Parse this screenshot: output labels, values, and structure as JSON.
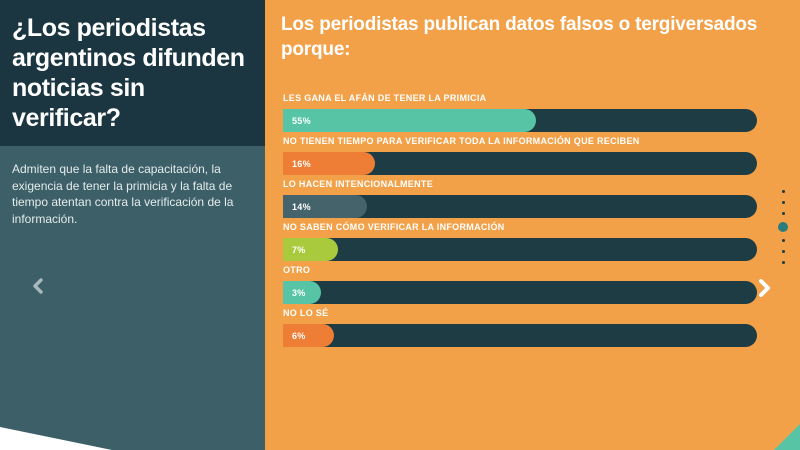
{
  "sidebar": {
    "title": "¿Los periodistas argentinos difunden noticias sin verificar?",
    "description": "Admiten que la falta de capacitación, la exigencia de tener la primicia y la falta de tiempo atentan contra la verificación de la información."
  },
  "chart_data": {
    "type": "bar",
    "orientation": "horizontal",
    "title": "Los periodistas publican datos falsos o tergiversados porque:",
    "categories": [
      "LES GANA EL AFÁN DE TENER LA PRIMICIA",
      "NO TIENEN TIEMPO PARA VERIFICAR TODA LA INFORMACIÓN QUE RECIBEN",
      "LO HACEN INTENCIONALMENTE",
      "NO SABEN CÓMO VERIFICAR LA INFORMACIÓN",
      "OTRO",
      "NO LO SÉ"
    ],
    "values": [
      55,
      16,
      14,
      7,
      3,
      6
    ],
    "value_suffix": "%",
    "bar_colors": [
      "#57C5A5",
      "#EE7D35",
      "#44636B",
      "#A9CA3C",
      "#57C5A5",
      "#EE7D35"
    ],
    "track_color": "#1E3C44",
    "xlim": [
      0,
      100
    ],
    "grid": false,
    "legend": false
  },
  "pagination": {
    "dot_count": 7,
    "active_index": 3
  },
  "colors": {
    "panel_orange": "#F2A149",
    "sidebar_dark": "#1B3640",
    "sidebar_light": "#3D6068",
    "bar_track": "#1E3C44",
    "accent_teal": "#57C5A5",
    "accent_orange": "#EE7D35",
    "accent_lime": "#A9CA3C",
    "accent_slate": "#44636B",
    "active_dot": "#2B7C7B",
    "prev_arrow_gray": "#A8B8BC",
    "text_white": "#FFFFFF"
  }
}
